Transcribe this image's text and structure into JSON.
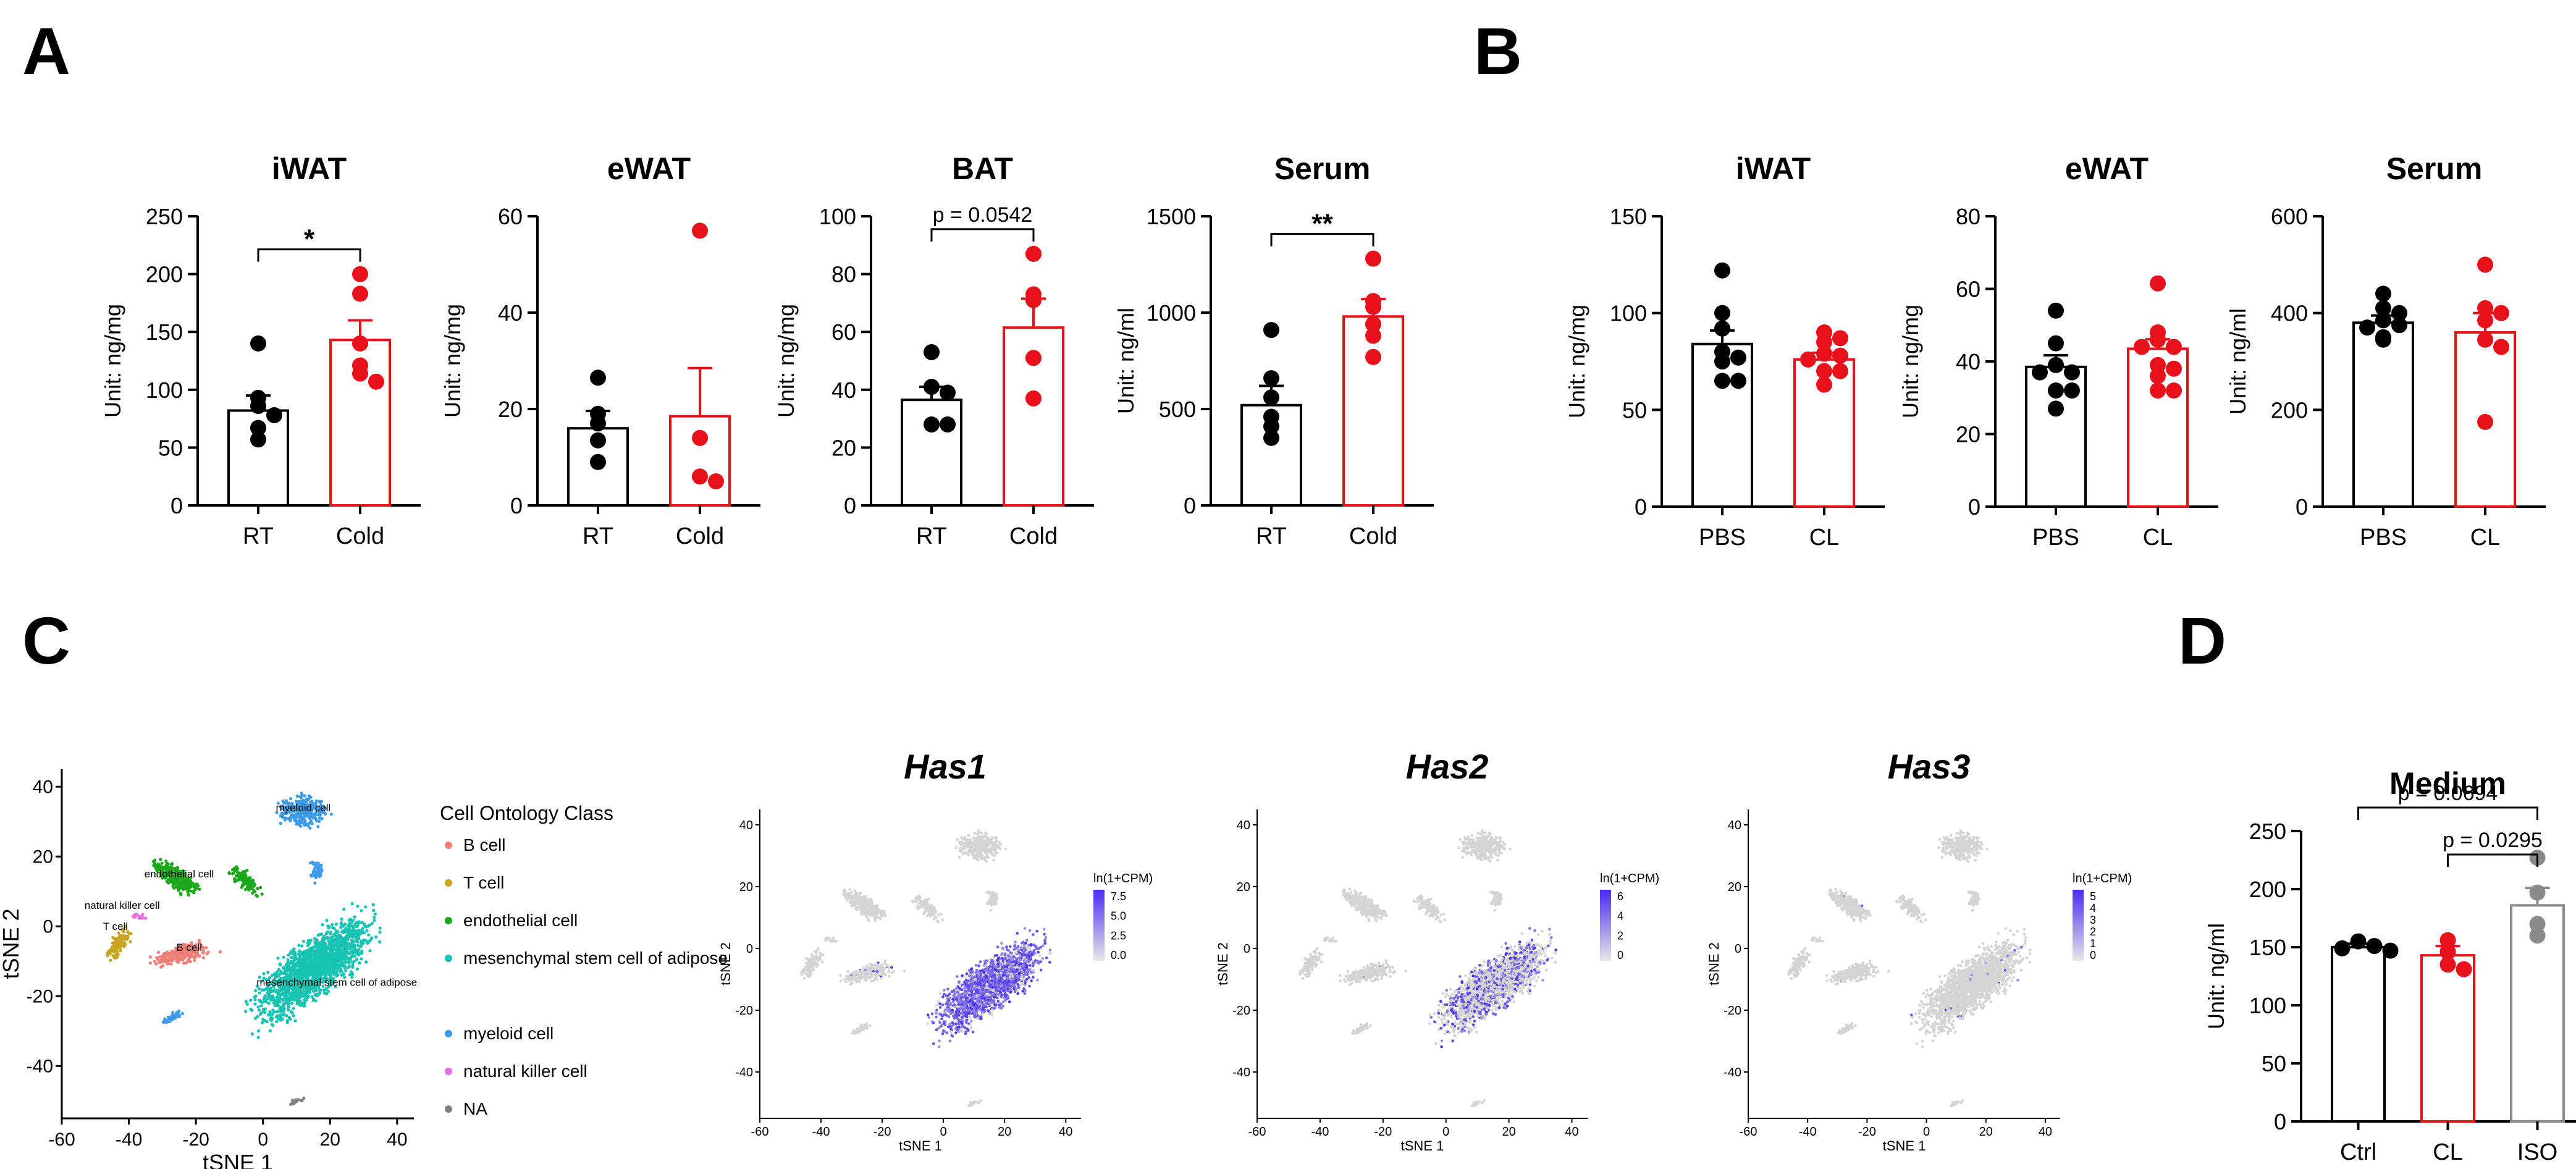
{
  "panels": {
    "A": "A",
    "B": "B",
    "C": "C",
    "D": "D"
  },
  "colors": {
    "ctrl": "#000000",
    "treat": "#e8101a",
    "iso": "#8a8a8a"
  },
  "chart_data": [
    {
      "id": "A1",
      "type": "bar",
      "title": "iWAT",
      "ylabel": "Unit: ng/mg",
      "ylim": [
        0,
        250
      ],
      "yticks": [
        0,
        50,
        100,
        150,
        200,
        250
      ],
      "categories": [
        "RT",
        "Cold"
      ],
      "means": [
        82,
        143
      ],
      "sem": [
        13,
        17
      ],
      "points": [
        [
          140,
          93,
          86,
          78,
          67,
          57
        ],
        [
          200,
          183,
          140,
          121,
          114,
          107
        ]
      ],
      "sig": {
        "from": 0,
        "to": 1,
        "label": "*"
      }
    },
    {
      "id": "A2",
      "type": "bar",
      "title": "eWAT",
      "ylabel": "Unit: ng/mg",
      "ylim": [
        0,
        60
      ],
      "yticks": [
        0,
        20,
        40,
        60
      ],
      "categories": [
        "RT",
        "Cold"
      ],
      "means": [
        16,
        18.5
      ],
      "sem": [
        3.6,
        10
      ],
      "points": [
        [
          26.5,
          19,
          17,
          13.5,
          9
        ],
        [
          57,
          14,
          6,
          5
        ]
      ],
      "sig": null
    },
    {
      "id": "A3",
      "type": "bar",
      "title": "BAT",
      "ylabel": "Unit: ng/mg",
      "ylim": [
        0,
        100
      ],
      "yticks": [
        0,
        20,
        40,
        60,
        80,
        100
      ],
      "categories": [
        "RT",
        "Cold"
      ],
      "means": [
        36.5,
        61.5
      ],
      "sem": [
        4.5,
        10
      ],
      "points": [
        [
          53,
          41,
          39,
          28,
          28
        ],
        [
          87,
          73,
          71,
          51,
          37
        ]
      ],
      "sig": {
        "from": 0,
        "to": 1,
        "label": "p = 0.0542"
      }
    },
    {
      "id": "A4",
      "type": "bar",
      "title": "Serum",
      "ylabel": "Unit: ng/ml",
      "ylim": [
        0,
        1500
      ],
      "yticks": [
        0,
        500,
        1000,
        1500
      ],
      "categories": [
        "RT",
        "Cold"
      ],
      "means": [
        520,
        980
      ],
      "sem": [
        100,
        90
      ],
      "points": [
        [
          910,
          660,
          560,
          460,
          410,
          350
        ],
        [
          1280,
          1060,
          1030,
          940,
          880,
          770
        ]
      ],
      "sig": {
        "from": 0,
        "to": 1,
        "label": "**"
      }
    },
    {
      "id": "B1",
      "type": "bar",
      "title": "iWAT",
      "ylabel": "Unit: ng/mg",
      "ylim": [
        0,
        150
      ],
      "yticks": [
        0,
        50,
        100,
        150
      ],
      "categories": [
        "PBS",
        "CL"
      ],
      "means": [
        84,
        76
      ],
      "sem": [
        7,
        3.5
      ],
      "points": [
        [
          122,
          100,
          92,
          80,
          77,
          75,
          65,
          65
        ],
        [
          90,
          87,
          85,
          79,
          78,
          76,
          70,
          70,
          63
        ]
      ],
      "sig": null
    },
    {
      "id": "B2",
      "type": "bar",
      "title": "eWAT",
      "ylabel": "Unit: ng/mg",
      "ylim": [
        0,
        80
      ],
      "yticks": [
        0,
        20,
        40,
        60,
        80
      ],
      "categories": [
        "PBS",
        "CL"
      ],
      "means": [
        38.5,
        43.5
      ],
      "sem": [
        3.2,
        2.6
      ],
      "points": [
        [
          54,
          45,
          39,
          37,
          37,
          32,
          32,
          27
        ],
        [
          61.5,
          48,
          46,
          44,
          44,
          39,
          38,
          36,
          32,
          32
        ]
      ],
      "sig": null
    },
    {
      "id": "B3",
      "type": "bar",
      "title": "Serum",
      "ylabel": "Unit: ng/ml",
      "ylim": [
        0,
        600
      ],
      "yticks": [
        0,
        200,
        400,
        600
      ],
      "categories": [
        "PBS",
        "CL"
      ],
      "means": [
        380,
        360
      ],
      "sem": [
        15,
        40
      ],
      "points": [
        [
          440,
          410,
          400,
          385,
          375,
          370,
          350,
          345
        ],
        [
          500,
          410,
          400,
          385,
          345,
          330,
          175
        ]
      ],
      "sig": null
    },
    {
      "id": "D",
      "type": "bar",
      "title": "Medium",
      "ylabel": "Unit: ng/ml",
      "ylim": [
        0,
        250
      ],
      "yticks": [
        0,
        50,
        100,
        150,
        200,
        250
      ],
      "categories": [
        "Ctrl",
        "CL",
        "ISO"
      ],
      "means": [
        150,
        143,
        186
      ],
      "sem": [
        3,
        8,
        15
      ],
      "points": [
        [
          155,
          151,
          149,
          147
        ],
        [
          156,
          146,
          135,
          131
        ],
        [
          227,
          197,
          170,
          160
        ]
      ],
      "sig": [
        {
          "from": 0,
          "to": 2,
          "label": "p = 0.0694"
        },
        {
          "from": 1,
          "to": 2,
          "label": "p = 0.0295"
        }
      ]
    },
    {
      "id": "C1",
      "type": "scatter",
      "xlabel": "tSNE 1",
      "ylabel": "tSNE 2",
      "xlim": [
        -60,
        45
      ],
      "ylim": [
        -55,
        45
      ],
      "xticks": [
        -60,
        -40,
        -20,
        0,
        20,
        40
      ],
      "yticks": [
        -40,
        -20,
        0,
        20,
        40
      ],
      "legend_title": "Cell Ontology Class",
      "legend": [
        {
          "label": "B cell",
          "color": "#f07f78"
        },
        {
          "label": "T cell",
          "color": "#c8a420"
        },
        {
          "label": "endothelial cell",
          "color": "#1aa81a"
        },
        {
          "label": "mesenchymal stem cell of adipose",
          "color": "#17c3b2"
        },
        {
          "label": "myeloid cell",
          "color": "#3d9be9"
        },
        {
          "label": "natural killer cell",
          "color": "#e96de2"
        },
        {
          "label": "NA",
          "color": "#808080"
        }
      ],
      "cluster_labels": [
        "myeloid cell",
        "endothelial cell",
        "natural killer cell",
        "T cell",
        "B cell",
        "mesenchymal stem cell of adipose"
      ]
    },
    {
      "id": "C2",
      "type": "scatter",
      "title": "Has1",
      "xlabel": "tSNE 1",
      "ylabel": "tSNE 2",
      "xlim": [
        -60,
        45
      ],
      "ylim": [
        -55,
        45
      ],
      "colorbar_title": "ln(1+CPM)",
      "colorbar_ticks": [
        "7.5",
        "5.0",
        "2.5",
        "0.0"
      ]
    },
    {
      "id": "C3",
      "type": "scatter",
      "title": "Has2",
      "xlabel": "tSNE 1",
      "ylabel": "tSNE 2",
      "xlim": [
        -60,
        45
      ],
      "ylim": [
        -55,
        45
      ],
      "colorbar_title": "ln(1+CPM)",
      "colorbar_ticks": [
        "6",
        "4",
        "2",
        "0"
      ]
    },
    {
      "id": "C4",
      "type": "scatter",
      "title": "Has3",
      "xlabel": "tSNE 1",
      "ylabel": "tSNE 2",
      "xlim": [
        -60,
        45
      ],
      "ylim": [
        -55,
        45
      ],
      "colorbar_title": "ln(1+CPM)",
      "colorbar_ticks": [
        "5",
        "4",
        "3",
        "2",
        "1",
        "0"
      ]
    }
  ]
}
